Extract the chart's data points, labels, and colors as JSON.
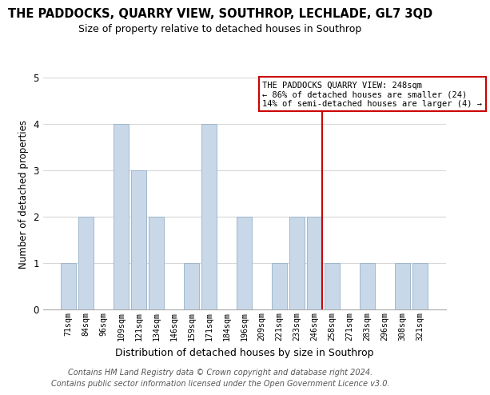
{
  "title": "THE PADDOCKS, QUARRY VIEW, SOUTHROP, LECHLADE, GL7 3QD",
  "subtitle": "Size of property relative to detached houses in Southrop",
  "xlabel": "Distribution of detached houses by size in Southrop",
  "ylabel": "Number of detached properties",
  "footer_line1": "Contains HM Land Registry data © Crown copyright and database right 2024.",
  "footer_line2": "Contains public sector information licensed under the Open Government Licence v3.0.",
  "bar_labels": [
    "71sqm",
    "84sqm",
    "96sqm",
    "109sqm",
    "121sqm",
    "134sqm",
    "146sqm",
    "159sqm",
    "171sqm",
    "184sqm",
    "196sqm",
    "209sqm",
    "221sqm",
    "233sqm",
    "246sqm",
    "258sqm",
    "271sqm",
    "283sqm",
    "296sqm",
    "308sqm",
    "321sqm"
  ],
  "bar_values": [
    1,
    2,
    0,
    4,
    3,
    2,
    0,
    1,
    4,
    0,
    2,
    0,
    1,
    2,
    2,
    1,
    0,
    1,
    0,
    1,
    1
  ],
  "bar_color": "#c8d8e8",
  "bar_edge_color": "#a0b8cc",
  "subject_line_index": 14,
  "subject_line_color": "#cc0000",
  "ylim": [
    0,
    5
  ],
  "yticks": [
    0,
    1,
    2,
    3,
    4,
    5
  ],
  "annotation_title": "THE PADDOCKS QUARRY VIEW: 248sqm",
  "annotation_line1": "← 86% of detached houses are smaller (24)",
  "annotation_line2": "14% of semi-detached houses are larger (4) →",
  "bg_color": "#ffffff",
  "grid_color": "#d8d8d8",
  "title_fontsize": 10.5,
  "subtitle_fontsize": 9,
  "footer_fontsize": 7
}
